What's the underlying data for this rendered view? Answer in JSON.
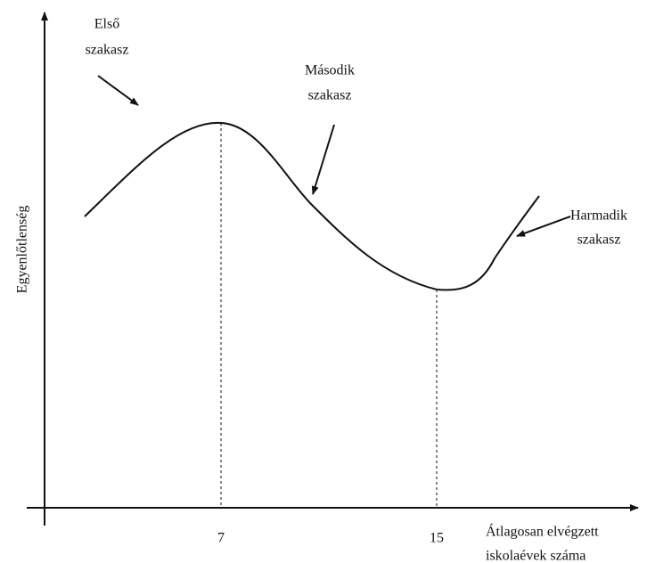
{
  "chart_data": {
    "type": "line",
    "y_label": "Egyenlőtlenség",
    "x_label": [
      "Átlagosan elvégzett",
      "iskolaévek száma"
    ],
    "xlim": [
      0,
      22
    ],
    "xticks": [
      7,
      15
    ],
    "annotations": [
      {
        "lines": [
          "Első",
          "szakasz"
        ]
      },
      {
        "lines": [
          "Második",
          "szakasz"
        ]
      },
      {
        "lines": [
          "Harmadik",
          "szakasz"
        ]
      }
    ]
  }
}
